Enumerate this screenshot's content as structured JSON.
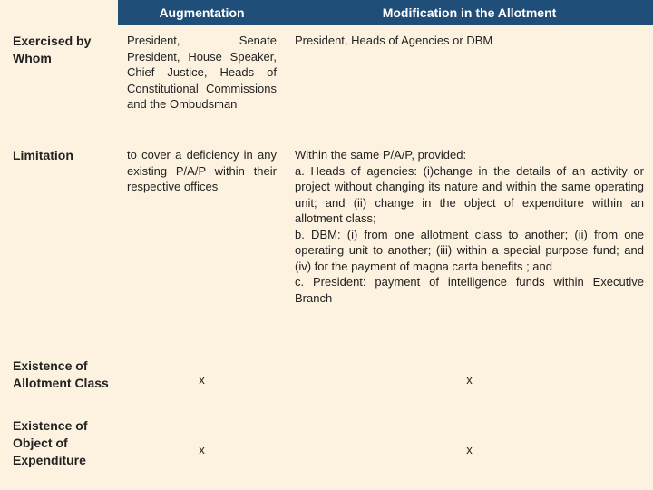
{
  "header": {
    "col1": "Augmentation",
    "col2": "Modification in the Allotment"
  },
  "rows": {
    "r1": {
      "label": "Exercised by Whom",
      "augmentation": "President, Senate President, House Speaker, Chief Justice, Heads of Constitutional Commissions and the Ombudsman",
      "modification": "President, Heads of Agencies or DBM"
    },
    "r2": {
      "label": "Limitation",
      "augmentation": "to cover a deficiency in any existing P/A/P within their respective offices",
      "modification": "Within the same P/A/P, provided:\na. Heads of agencies: (i)change in the details of an activity or project without changing its nature and within the same operating unit; and (ii) change in the object of expenditure within an allotment class;\nb. DBM: (i) from one allotment class to another; (ii) from one operating unit to another; (iii) within a special purpose fund; and (iv) for the payment of magna carta benefits ; and\nc. President: payment of intelligence funds within Executive Branch"
    },
    "r3": {
      "label": "Existence of Allotment Class",
      "augmentation": "x",
      "modification": "x"
    },
    "r4": {
      "label": "Existence of Object of Expenditure",
      "augmentation": "x",
      "modification": "x"
    }
  },
  "colors": {
    "header_bg": "#1f4e79",
    "header_text": "#ffffff",
    "body_bg": "#fdf2e0",
    "text": "#222222"
  },
  "fonts": {
    "family": "Arial",
    "header_size_pt": 11,
    "body_size_pt": 10
  }
}
